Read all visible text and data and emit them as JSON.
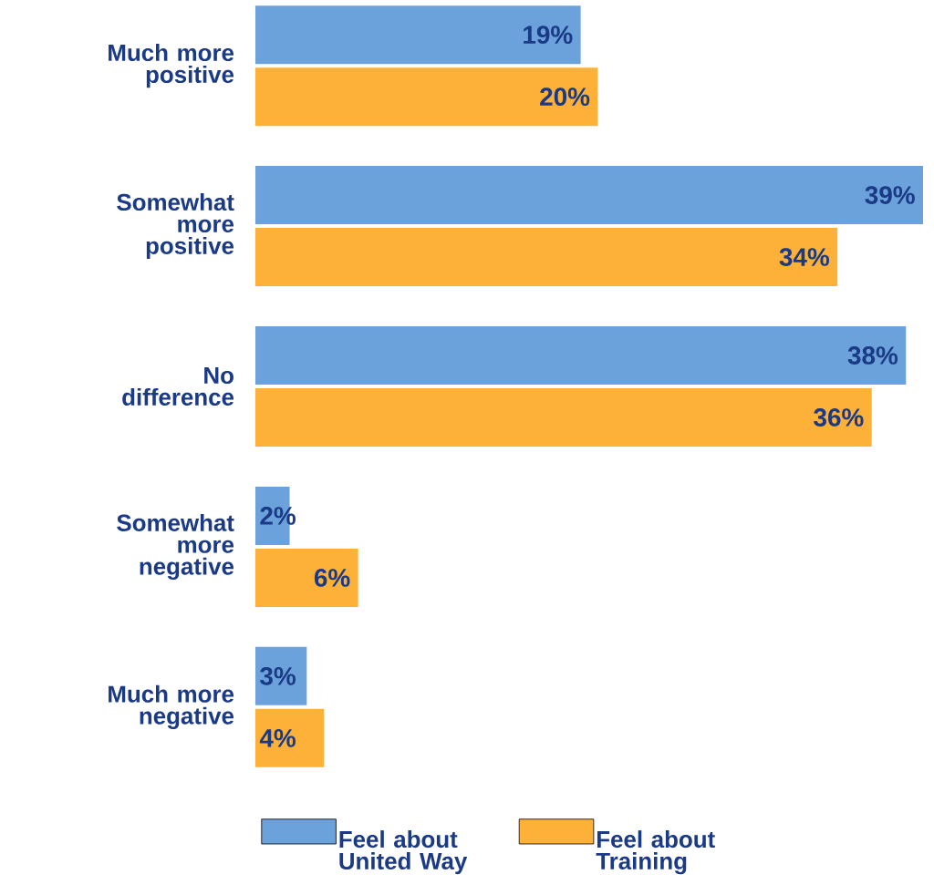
{
  "chart_data": {
    "type": "bar",
    "orientation": "horizontal",
    "categories": [
      "Much more positive",
      "Somewhat more positive",
      "No difference",
      "Somewhat more negative",
      "Much more negative"
    ],
    "series": [
      {
        "name": "Feel about United Way",
        "color": "#6ca2dc",
        "values": [
          19,
          39,
          38,
          2,
          3
        ],
        "value_labels": [
          "19%",
          "39%",
          "38%",
          "2%",
          "3%"
        ]
      },
      {
        "name": "Feel about Training",
        "color": "#fdb138",
        "values": [
          20,
          34,
          36,
          6,
          4
        ],
        "value_labels": [
          "20%",
          "34%",
          "36%",
          "6%",
          "4%"
        ]
      }
    ],
    "legend": "bottom"
  }
}
